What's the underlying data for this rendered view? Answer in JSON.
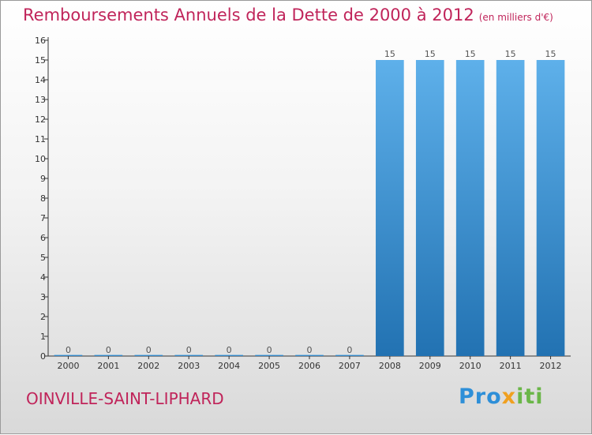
{
  "title": "Remboursements Annuels de la Dette de 2000 à 2012",
  "unit": "(en milliers d'€)",
  "city": "OINVILLE-SAINT-LIPHARD",
  "brand": {
    "part1": "Pro",
    "part2": "x",
    "part3": "iti"
  },
  "colors": {
    "title": "#c0245a",
    "bar_top": "#5eb0ea",
    "bar_bottom": "#2272b2"
  },
  "chart_data": {
    "type": "bar",
    "title": "Remboursements Annuels de la Dette de 2000 à 2012",
    "xlabel": "",
    "ylabel": "",
    "categories": [
      "2000",
      "2001",
      "2002",
      "2003",
      "2004",
      "2005",
      "2006",
      "2007",
      "2008",
      "2009",
      "2010",
      "2011",
      "2012"
    ],
    "values": [
      0,
      0,
      0,
      0,
      0,
      0,
      0,
      0,
      15,
      15,
      15,
      15,
      15
    ],
    "ylim": [
      0,
      16
    ],
    "yticks": [
      0,
      1,
      2,
      3,
      4,
      5,
      6,
      7,
      8,
      9,
      10,
      11,
      12,
      13,
      14,
      15,
      16
    ],
    "grid": false,
    "data_labels": true
  }
}
